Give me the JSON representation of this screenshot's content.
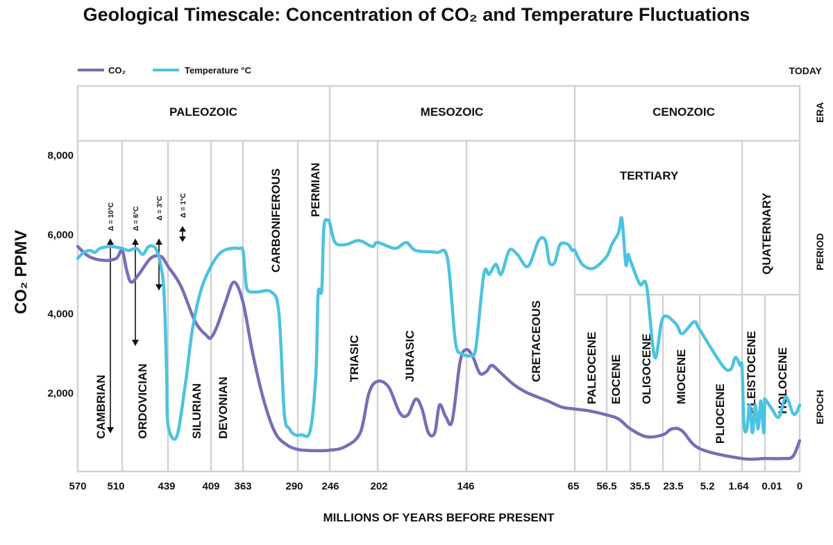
{
  "chart_data": {
    "type": "line",
    "title": "Geological Timescale: Concentration of CO₂ and Temperature Fluctuations",
    "xlabel": "MILLIONS OF YEARS BEFORE PRESENT",
    "ylabel": "CO₂ PPMV",
    "ylim": [
      0,
      8000
    ],
    "y_ticks": [
      {
        "label": "8,000",
        "value": 8000
      },
      {
        "label": "6,000",
        "value": 6000
      },
      {
        "label": "4,000",
        "value": 4000
      },
      {
        "label": "2,000",
        "value": 2000
      }
    ],
    "x_ticks": [
      "570",
      "510",
      "439",
      "409",
      "363",
      "290",
      "246",
      "202",
      "146",
      "65",
      "56.5",
      "35.5",
      "23.5",
      "5.2",
      "1.64",
      "0.01",
      "0"
    ],
    "x_axis_note": "non-linear geological scale: each tick label is a period/epoch boundary (millions of years before present)",
    "today_label": "TODAY",
    "side_labels": [
      "ERA",
      "PERIOD",
      "EPOCH"
    ],
    "eras": [
      "PALEOZOIC",
      "MESOZOIC",
      "CENOZOIC"
    ],
    "periods": [
      "CAMBRIAN",
      "ORDOVICIAN",
      "SILURIAN",
      "DEVONIAN",
      "CARBONIFEROUS",
      "PERMIAN",
      "TRIASIC",
      "JURASIC",
      "CRETACEOUS",
      "TERTIARY",
      "QUATERNARY"
    ],
    "epochs": [
      "PALEOCENE",
      "EOCENE",
      "OLIGOCENE",
      "MIOCENE",
      "PLIOCENE",
      "PLEISTOCENE",
      "HOLOCENE"
    ],
    "temperature_deltas": [
      "Δ = 10°C",
      "Δ = 6°C",
      "Δ = 3°C",
      "Δ = 1°C"
    ],
    "legend_placement": "top-left",
    "series": [
      {
        "name": "CO₂",
        "color": "#7b6cb6",
        "points": [
          [
            570,
            5700
          ],
          [
            555,
            5450
          ],
          [
            535,
            5350
          ],
          [
            518,
            5400
          ],
          [
            510,
            5600
          ],
          [
            503,
            5100
          ],
          [
            496,
            4800
          ],
          [
            484,
            5000
          ],
          [
            466,
            5400
          ],
          [
            450,
            5450
          ],
          [
            439,
            5200
          ],
          [
            430,
            4700
          ],
          [
            420,
            3800
          ],
          [
            412,
            3450
          ],
          [
            409,
            3400
          ],
          [
            400,
            3700
          ],
          [
            388,
            4300
          ],
          [
            376,
            4800
          ],
          [
            363,
            4300
          ],
          [
            350,
            3000
          ],
          [
            335,
            1800
          ],
          [
            320,
            1000
          ],
          [
            305,
            700
          ],
          [
            290,
            580
          ],
          [
            270,
            550
          ],
          [
            246,
            560
          ],
          [
            232,
            650
          ],
          [
            218,
            1000
          ],
          [
            210,
            2000
          ],
          [
            202,
            2300
          ],
          [
            195,
            2150
          ],
          [
            188,
            1500
          ],
          [
            183,
            1450
          ],
          [
            178,
            1850
          ],
          [
            174,
            1600
          ],
          [
            170,
            1000
          ],
          [
            166,
            1000
          ],
          [
            163,
            1700
          ],
          [
            159,
            1400
          ],
          [
            155,
            1300
          ],
          [
            150,
            2800
          ],
          [
            146,
            3100
          ],
          [
            141,
            2900
          ],
          [
            136,
            2500
          ],
          [
            131,
            2550
          ],
          [
            127,
            2700
          ],
          [
            120,
            2500
          ],
          [
            110,
            2200
          ],
          [
            100,
            2000
          ],
          [
            85,
            1800
          ],
          [
            75,
            1650
          ],
          [
            65,
            1600
          ],
          [
            61,
            1550
          ],
          [
            56.5,
            1450
          ],
          [
            46,
            1350
          ],
          [
            35.5,
            1100
          ],
          [
            29.5,
            900
          ],
          [
            23.5,
            950
          ],
          [
            19,
            1100
          ],
          [
            14,
            1050
          ],
          [
            5.2,
            600
          ],
          [
            1.64,
            350
          ],
          [
            0.01,
            350
          ],
          [
            0.005,
            350
          ],
          [
            0.002,
            400
          ],
          [
            0,
            800
          ]
        ]
      },
      {
        "name": "Temperature °C",
        "color": "#4cc3e0",
        "points": [
          [
            570,
            5400
          ],
          [
            562,
            5550
          ],
          [
            553,
            5600
          ],
          [
            547,
            5550
          ],
          [
            540,
            5650
          ],
          [
            525,
            5700
          ],
          [
            510,
            5650
          ],
          [
            500,
            5600
          ],
          [
            488,
            5650
          ],
          [
            478,
            5500
          ],
          [
            469,
            5700
          ],
          [
            458,
            5650
          ],
          [
            450,
            5200
          ],
          [
            445,
            4500
          ],
          [
            441,
            2500
          ],
          [
            439,
            1200
          ],
          [
            433,
            900
          ],
          [
            427,
            2200
          ],
          [
            422,
            3600
          ],
          [
            416,
            4600
          ],
          [
            409,
            5200
          ],
          [
            395,
            5550
          ],
          [
            380,
            5650
          ],
          [
            368,
            5650
          ],
          [
            363,
            5600
          ],
          [
            360,
            5000
          ],
          [
            357,
            4600
          ],
          [
            345,
            4550
          ],
          [
            325,
            4550
          ],
          [
            315,
            4000
          ],
          [
            308,
            1500
          ],
          [
            301,
            1100
          ],
          [
            294,
            950
          ],
          [
            285,
            950
          ],
          [
            273,
            1050
          ],
          [
            265,
            2500
          ],
          [
            262,
            4500
          ],
          [
            257,
            4600
          ],
          [
            254,
            6200
          ],
          [
            248,
            6350
          ],
          [
            246,
            6300
          ],
          [
            241,
            5800
          ],
          [
            231,
            5750
          ],
          [
            219,
            5850
          ],
          [
            207,
            5700
          ],
          [
            202,
            5800
          ],
          [
            191,
            5650
          ],
          [
            184,
            5800
          ],
          [
            178,
            5600
          ],
          [
            165,
            5550
          ],
          [
            158,
            5400
          ],
          [
            153,
            3300
          ],
          [
            149,
            3000
          ],
          [
            146,
            2950
          ],
          [
            143,
            2950
          ],
          [
            139,
            3150
          ],
          [
            133,
            5000
          ],
          [
            129,
            5000
          ],
          [
            124,
            5250
          ],
          [
            120,
            5000
          ],
          [
            114,
            5600
          ],
          [
            108,
            5500
          ],
          [
            100,
            5200
          ],
          [
            92,
            5850
          ],
          [
            87,
            5850
          ],
          [
            84,
            5300
          ],
          [
            80,
            5300
          ],
          [
            76,
            5750
          ],
          [
            70,
            5750
          ],
          [
            67,
            5600
          ],
          [
            65,
            5600
          ],
          [
            63,
            5250
          ],
          [
            60,
            5150
          ],
          [
            56.5,
            5450
          ],
          [
            52,
            5750
          ],
          [
            46,
            6050
          ],
          [
            43,
            6400
          ],
          [
            39.5,
            5250
          ],
          [
            37.5,
            5500
          ],
          [
            35.5,
            5350
          ],
          [
            32,
            4750
          ],
          [
            29.5,
            4700
          ],
          [
            26.5,
            2900
          ],
          [
            23.5,
            3900
          ],
          [
            17,
            3750
          ],
          [
            14,
            3500
          ],
          [
            8,
            3800
          ],
          [
            5.2,
            3600
          ],
          [
            3.3,
            2700
          ],
          [
            2.6,
            2600
          ],
          [
            2.2,
            2900
          ],
          [
            1.8,
            2700
          ],
          [
            1.64,
            2650
          ],
          [
            1.5,
            1200
          ],
          [
            1.3,
            1100
          ],
          [
            1.1,
            1700
          ],
          [
            0.9,
            1000
          ],
          [
            0.7,
            1700
          ],
          [
            0.5,
            1100
          ],
          [
            0.3,
            1800
          ],
          [
            0.1,
            1000
          ],
          [
            0.03,
            1700
          ],
          [
            0.01,
            1850
          ],
          [
            0.008,
            1600
          ],
          [
            0.006,
            1400
          ],
          [
            0.004,
            1900
          ],
          [
            0.002,
            1500
          ],
          [
            0.001,
            1500
          ],
          [
            0,
            1700
          ]
        ]
      }
    ]
  }
}
